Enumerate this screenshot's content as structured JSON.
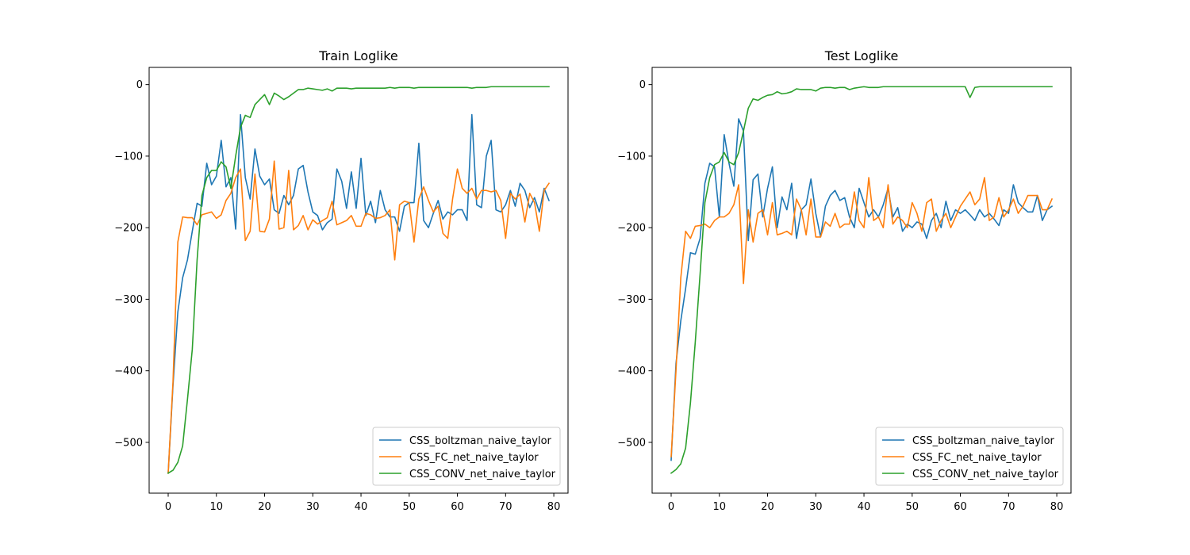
{
  "chart_data": [
    {
      "type": "line",
      "title": "Train Loglike",
      "xlabel": "",
      "ylabel": "",
      "xlim": [
        -3.95,
        82.95
      ],
      "ylim": [
        -571,
        24
      ],
      "xticks": [
        0,
        10,
        20,
        30,
        40,
        50,
        60,
        70,
        80
      ],
      "yticks": [
        0,
        -100,
        -200,
        -300,
        -400,
        -500
      ],
      "xtick_labels": [
        "0",
        "10",
        "20",
        "30",
        "40",
        "50",
        "60",
        "70",
        "80"
      ],
      "ytick_labels": [
        "0",
        "−100",
        "−200",
        "−300",
        "−400",
        "−500"
      ],
      "legend_position": "lower right",
      "grid": false,
      "series": [
        {
          "name": "CSS_boltzman_naive_taylor",
          "color": "#1f77b4",
          "values": [
            -543,
            -420,
            -318,
            -270,
            -245,
            -205,
            -166,
            -170,
            -110,
            -140,
            -128,
            -78,
            -143,
            -130,
            -202,
            -42,
            -130,
            -160,
            -90,
            -128,
            -140,
            -132,
            -175,
            -180,
            -155,
            -168,
            -155,
            -118,
            -113,
            -150,
            -178,
            -183,
            -203,
            -193,
            -188,
            -118,
            -135,
            -173,
            -122,
            -173,
            -103,
            -183,
            -163,
            -193,
            -148,
            -175,
            -185,
            -185,
            -205,
            -170,
            -165,
            -165,
            -82,
            -190,
            -200,
            -180,
            -162,
            -188,
            -178,
            -182,
            -175,
            -175,
            -190,
            -42,
            -168,
            -172,
            -100,
            -78,
            -175,
            -178,
            -168,
            -148,
            -170,
            -138,
            -148,
            -172,
            -158,
            -178,
            -145,
            -162
          ]
        },
        {
          "name": "CSS_FC_net_naive_taylor",
          "color": "#ff7f0e",
          "values": [
            -543,
            -415,
            -220,
            -185,
            -186,
            -186,
            -196,
            -182,
            -180,
            -178,
            -187,
            -182,
            -162,
            -152,
            -130,
            -118,
            -218,
            -205,
            -125,
            -205,
            -206,
            -188,
            -107,
            -202,
            -200,
            -120,
            -203,
            -197,
            -183,
            -203,
            -189,
            -195,
            -190,
            -186,
            -163,
            -196,
            -193,
            -190,
            -183,
            -198,
            -198,
            -180,
            -182,
            -187,
            -186,
            -183,
            -175,
            -245,
            -168,
            -163,
            -165,
            -220,
            -160,
            -143,
            -162,
            -178,
            -170,
            -208,
            -215,
            -160,
            -118,
            -145,
            -152,
            -145,
            -160,
            -148,
            -148,
            -150,
            -148,
            -162,
            -215,
            -152,
            -160,
            -153,
            -192,
            -152,
            -165,
            -205,
            -148,
            -138
          ]
        },
        {
          "name": "CSS_CONV_net_naive_taylor",
          "color": "#2ca02c",
          "values": [
            -543,
            -539,
            -528,
            -505,
            -440,
            -370,
            -245,
            -155,
            -130,
            -120,
            -120,
            -108,
            -115,
            -145,
            -100,
            -60,
            -43,
            -46,
            -28,
            -21,
            -14,
            -28,
            -12,
            -16,
            -21,
            -17,
            -12,
            -7,
            -7,
            -5,
            -6,
            -7,
            -8,
            -6,
            -9,
            -5,
            -5,
            -5,
            -6,
            -5,
            -5,
            -5,
            -5,
            -5,
            -5,
            -5,
            -4,
            -5,
            -4,
            -4,
            -4,
            -5,
            -4,
            -4,
            -4,
            -4,
            -4,
            -4,
            -4,
            -4,
            -4,
            -4,
            -4,
            -5,
            -4,
            -4,
            -4,
            -3,
            -3,
            -3,
            -3,
            -3,
            -3,
            -3,
            -3,
            -3,
            -3,
            -3,
            -3,
            -3
          ]
        }
      ]
    },
    {
      "type": "line",
      "title": "Test Loglike",
      "xlabel": "",
      "ylabel": "",
      "xlim": [
        -3.95,
        82.95
      ],
      "ylim": [
        -571,
        24
      ],
      "xticks": [
        0,
        10,
        20,
        30,
        40,
        50,
        60,
        70,
        80
      ],
      "yticks": [
        0,
        -100,
        -200,
        -300,
        -400,
        -500
      ],
      "xtick_labels": [
        "0",
        "10",
        "20",
        "30",
        "40",
        "50",
        "60",
        "70",
        "80"
      ],
      "ytick_labels": [
        "0",
        "−100",
        "−200",
        "−300",
        "−400",
        "−500"
      ],
      "legend_position": "lower right",
      "grid": false,
      "series": [
        {
          "name": "CSS_boltzman_naive_taylor",
          "color": "#1f77b4",
          "values": [
            -525,
            -390,
            -330,
            -285,
            -235,
            -237,
            -215,
            -138,
            -110,
            -115,
            -185,
            -70,
            -110,
            -142,
            -48,
            -65,
            -218,
            -133,
            -125,
            -185,
            -145,
            -115,
            -200,
            -157,
            -175,
            -138,
            -215,
            -175,
            -168,
            -132,
            -180,
            -213,
            -170,
            -155,
            -148,
            -162,
            -158,
            -185,
            -200,
            -145,
            -165,
            -185,
            -175,
            -185,
            -168,
            -145,
            -185,
            -172,
            -205,
            -195,
            -200,
            -192,
            -195,
            -215,
            -190,
            -180,
            -200,
            -163,
            -190,
            -175,
            -180,
            -175,
            -182,
            -190,
            -175,
            -185,
            -180,
            -188,
            -197,
            -175,
            -180,
            -140,
            -165,
            -172,
            -178,
            -178,
            -155,
            -190,
            -175,
            -170
          ]
        },
        {
          "name": "CSS_FC_net_naive_taylor",
          "color": "#ff7f0e",
          "values": [
            -520,
            -400,
            -270,
            -205,
            -215,
            -198,
            -197,
            -195,
            -200,
            -190,
            -185,
            -185,
            -180,
            -168,
            -140,
            -278,
            -175,
            -220,
            -180,
            -175,
            -210,
            -165,
            -210,
            -208,
            -205,
            -210,
            -160,
            -175,
            -210,
            -160,
            -213,
            -213,
            -192,
            -198,
            -180,
            -200,
            -195,
            -195,
            -150,
            -190,
            -200,
            -130,
            -190,
            -185,
            -200,
            -140,
            -195,
            -185,
            -190,
            -200,
            -165,
            -180,
            -205,
            -165,
            -160,
            -205,
            -190,
            -180,
            -200,
            -185,
            -170,
            -160,
            -150,
            -168,
            -160,
            -130,
            -190,
            -185,
            -158,
            -185,
            -175,
            -160,
            -180,
            -170,
            -155,
            -155,
            -155,
            -175,
            -175,
            -160
          ]
        },
        {
          "name": "CSS_CONV_net_naive_taylor",
          "color": "#2ca02c",
          "values": [
            -543,
            -538,
            -530,
            -508,
            -445,
            -360,
            -265,
            -165,
            -130,
            -112,
            -108,
            -95,
            -108,
            -112,
            -95,
            -65,
            -33,
            -20,
            -22,
            -18,
            -15,
            -14,
            -10,
            -13,
            -12,
            -10,
            -6,
            -7,
            -7,
            -7,
            -9,
            -5,
            -4,
            -4,
            -5,
            -4,
            -4,
            -7,
            -5,
            -4,
            -3,
            -4,
            -4,
            -4,
            -3,
            -3,
            -3,
            -3,
            -3,
            -3,
            -3,
            -3,
            -3,
            -3,
            -3,
            -3,
            -3,
            -3,
            -3,
            -3,
            -3,
            -3,
            -18,
            -4,
            -3,
            -3,
            -3,
            -3,
            -3,
            -3,
            -3,
            -3,
            -3,
            -3,
            -3,
            -3,
            -3,
            -3,
            -3,
            -3
          ]
        }
      ]
    }
  ]
}
